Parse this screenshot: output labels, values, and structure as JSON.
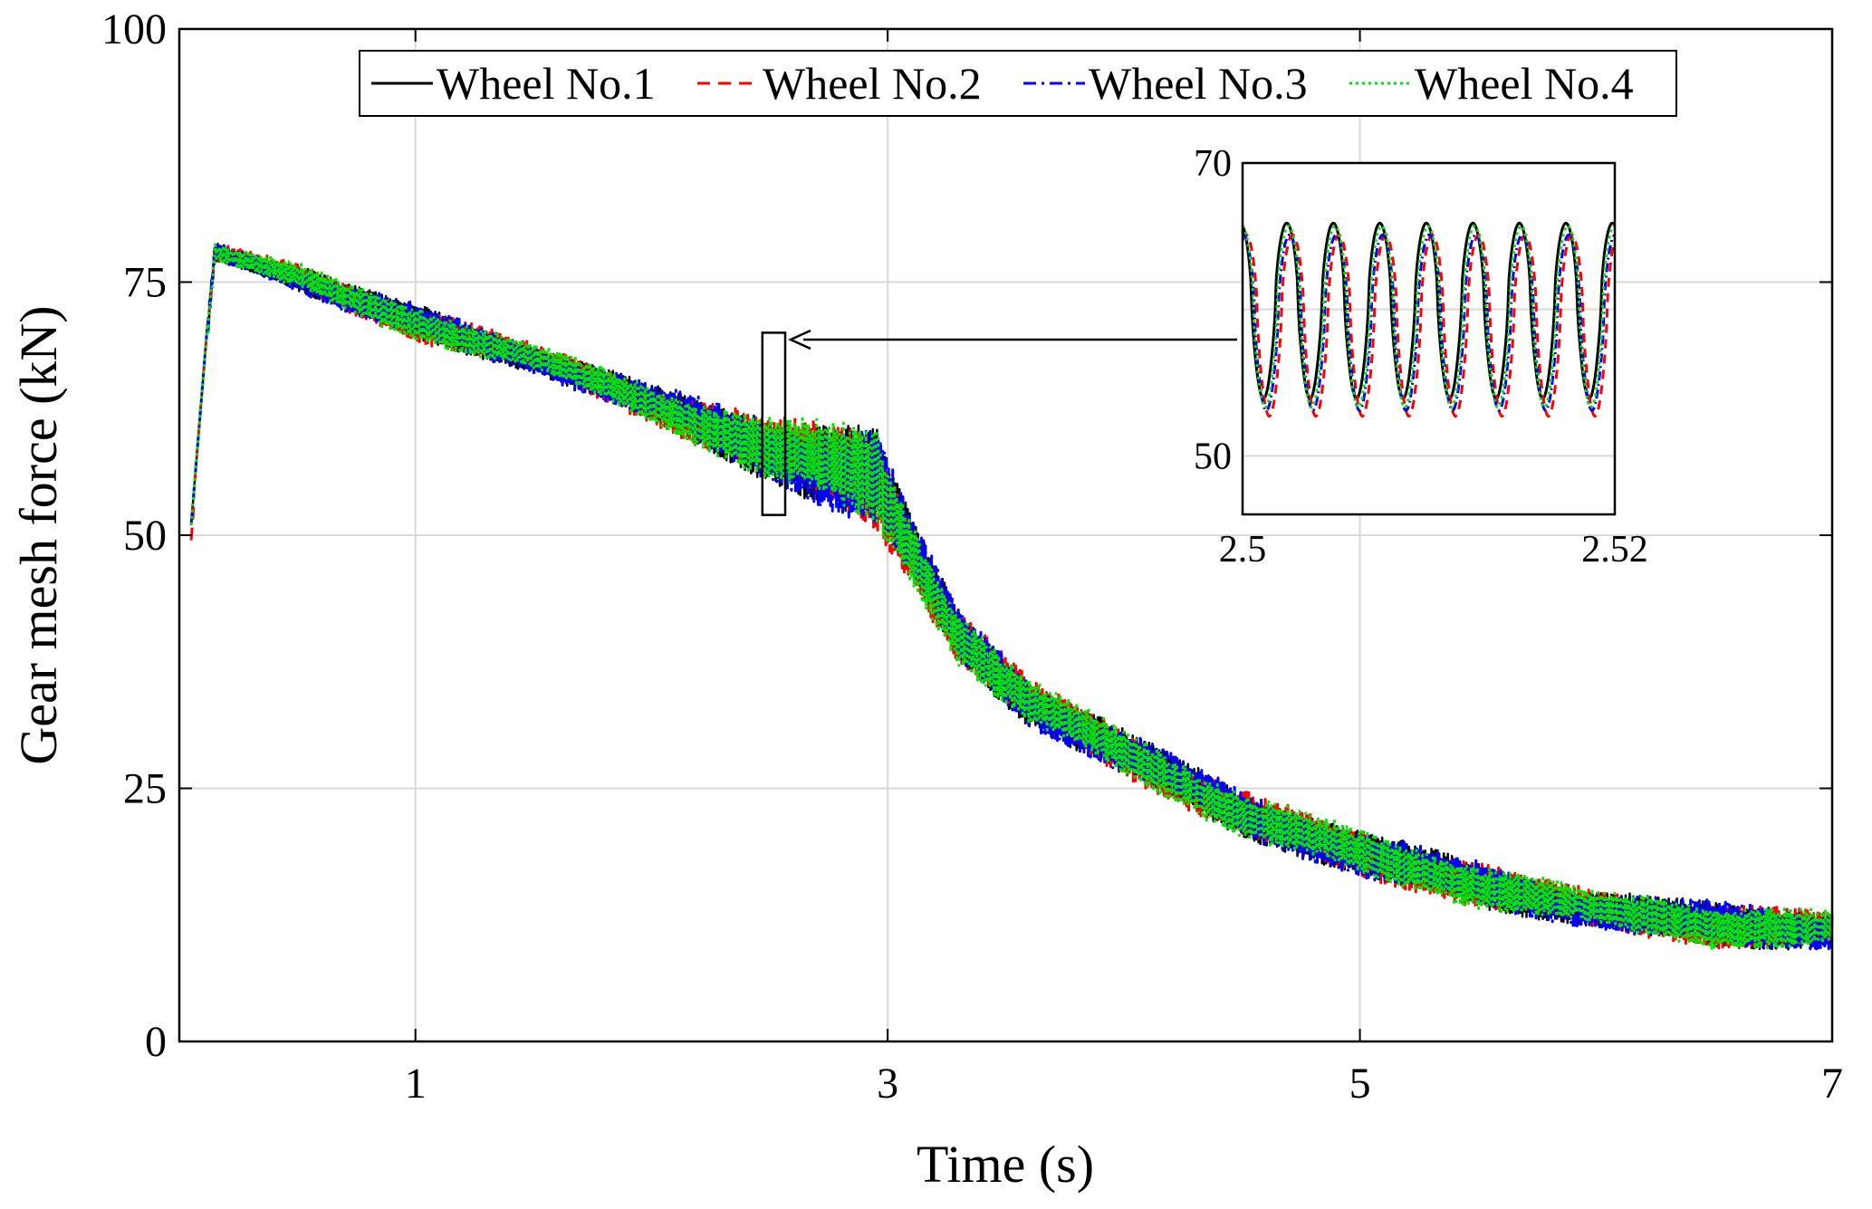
{
  "chart_data": [
    {
      "type": "line",
      "title": "",
      "xlabel": "Time (s)",
      "ylabel": "Gear mesh force (kN)",
      "xlim": [
        0,
        7
      ],
      "ylim": [
        0,
        100
      ],
      "xticks": [
        1,
        3,
        5,
        7
      ],
      "xtick_labels": [
        "1",
        "3",
        "5",
        "7"
      ],
      "yticks": [
        0,
        25,
        50,
        75,
        100
      ],
      "ytick_labels": [
        "0",
        "25",
        "50",
        "75",
        "100"
      ],
      "grid": true,
      "legend_position": "top",
      "legend_orientation": "horizontal",
      "series": [
        {
          "name": "Wheel No.1",
          "color": "#000000",
          "style": "solid"
        },
        {
          "name": "Wheel No.2",
          "color": "#ff0000",
          "style": "dashed"
        },
        {
          "name": "Wheel No.3",
          "color": "#0000ff",
          "style": "dashdot"
        },
        {
          "name": "Wheel No.4",
          "color": "#00e600",
          "style": "dotted"
        }
      ],
      "envelope_kN": {
        "t": [
          0.05,
          0.15,
          0.3,
          0.5,
          0.7,
          1.0,
          1.5,
          2.0,
          2.5,
          2.95,
          3.1,
          3.3,
          3.6,
          4.0,
          4.5,
          5.0,
          5.5,
          6.0,
          6.5,
          7.0
        ],
        "upper": [
          53,
          79,
          78,
          77,
          75,
          73,
          69,
          65,
          62,
          61,
          52,
          43,
          36,
          31,
          25,
          21,
          18,
          15,
          14,
          13
        ],
        "lower": [
          51,
          77,
          76,
          74,
          72,
          69,
          66,
          61,
          55,
          50,
          45,
          37,
          31,
          26,
          20,
          16,
          13,
          11,
          9,
          9
        ]
      },
      "zoom_box": {
        "x_start": 2.5,
        "x_end": 2.52,
        "y_min": 52,
        "y_max": 70
      }
    },
    {
      "type": "line",
      "role": "inset",
      "xlim": [
        2.5,
        2.52
      ],
      "ylim": [
        46,
        70
      ],
      "xticks": [
        2.5,
        2.52
      ],
      "xtick_labels": [
        "2.5",
        "2.52"
      ],
      "yticks": [
        50,
        70
      ],
      "ytick_labels": [
        "50",
        "70"
      ],
      "grid": true,
      "oscillation": {
        "cycles": 8,
        "mean_kN": 59.5,
        "peak_kN": 66,
        "trough_kN": 54
      },
      "series": [
        {
          "name": "Wheel No.1",
          "color": "#000000",
          "style": "solid",
          "phase": 0.0,
          "amp": 6.0,
          "offset": 0.4
        },
        {
          "name": "Wheel No.2",
          "color": "#ff0000",
          "style": "dashed",
          "phase": 0.5,
          "amp": 6.2,
          "offset": -0.6
        },
        {
          "name": "Wheel No.3",
          "color": "#0000ff",
          "style": "dashdot",
          "phase": 0.25,
          "amp": 6.0,
          "offset": -0.4
        },
        {
          "name": "Wheel No.4",
          "color": "#00e600",
          "style": "dotted",
          "phase": 0.15,
          "amp": 6.2,
          "offset": 0.0
        }
      ]
    }
  ]
}
